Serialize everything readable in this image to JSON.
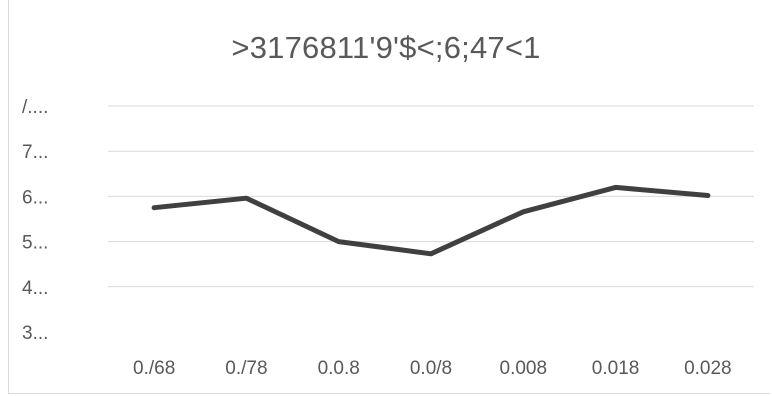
{
  "chart_data": {
    "type": "line",
    "title": ">3176811'9'$<;6;47<1",
    "xlabel": "",
    "ylabel": "",
    "categories": [
      "0./68",
      "0./78",
      "0.0.8",
      "0.0/8",
      "0.008",
      "0.018",
      "0.028"
    ],
    "y_tick_labels": [
      "3...",
      "4...",
      "5...",
      "6...",
      "7...",
      "/...."
    ],
    "ylim": [
      3,
      8
    ],
    "series": [
      {
        "values": [
          5.75,
          5.96,
          5.0,
          4.73,
          5.66,
          6.2,
          6.02
        ]
      }
    ],
    "line_color": "#404040",
    "grid_color": "#d9d9d9",
    "grid": true,
    "legend": "none"
  }
}
